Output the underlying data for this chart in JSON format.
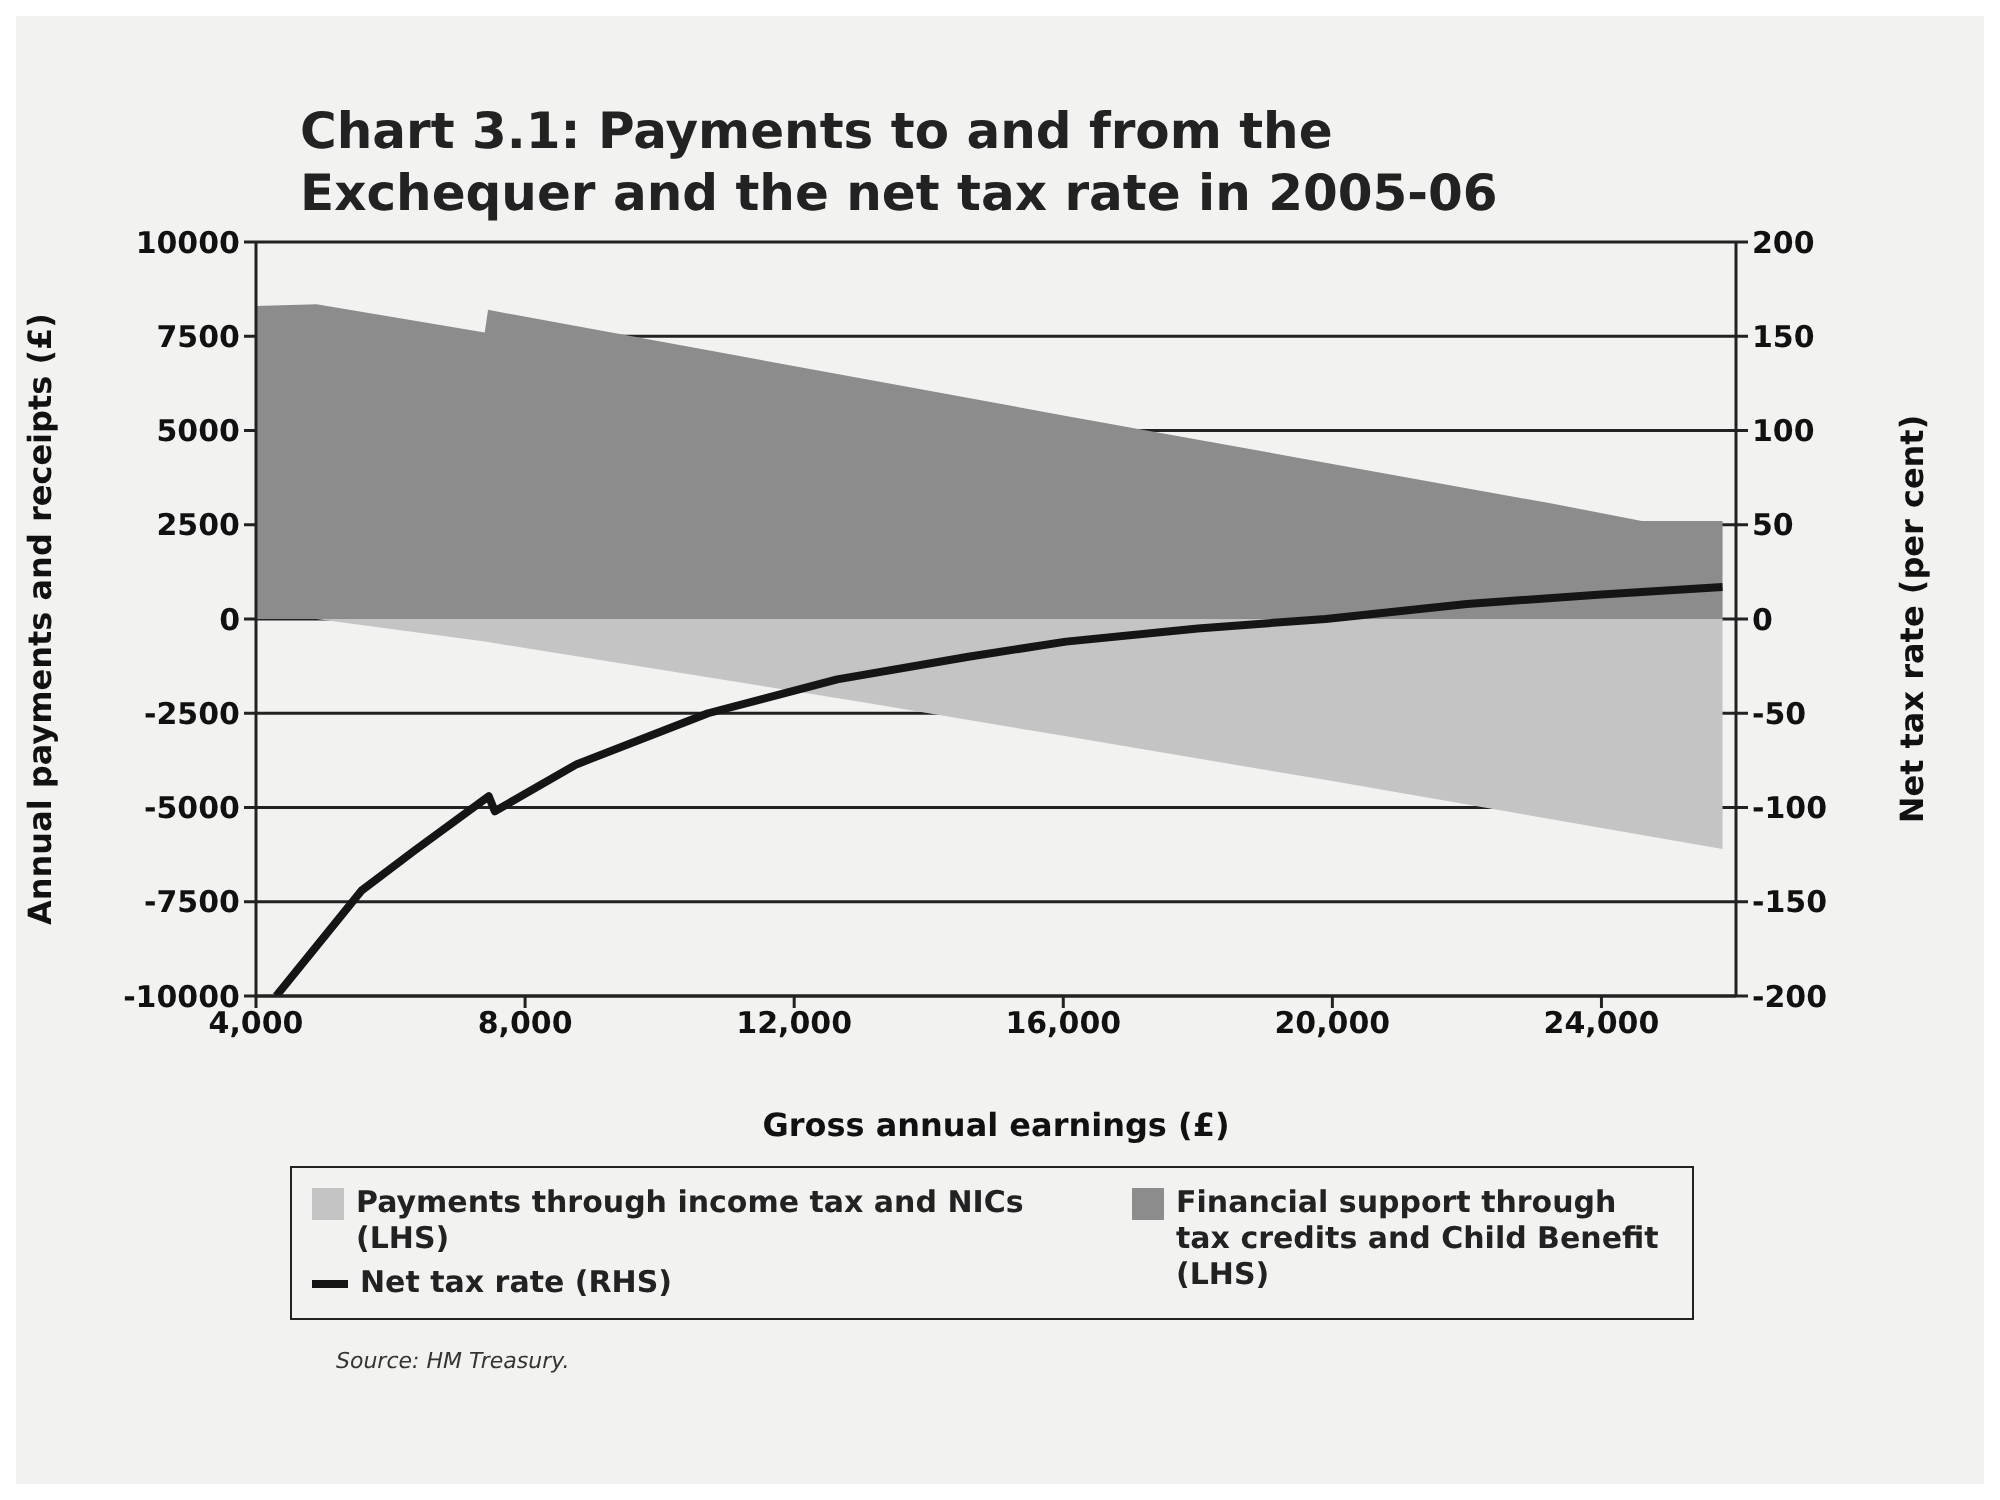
{
  "chart_data": {
    "type": "area",
    "title": "Chart 3.1: Payments to and from the Exchequer and the net tax rate in 2005-06",
    "xlabel": "Gross annual earnings (£)",
    "ylabel": "Annual payments and receipts (£)",
    "y2label": "Net tax rate (per cent)",
    "xlim": [
      4000,
      26000
    ],
    "xticks": [
      {
        "value": 4000,
        "label": "4,000"
      },
      {
        "value": 8000,
        "label": "8,000"
      },
      {
        "value": 12000,
        "label": "12,000"
      },
      {
        "value": 16000,
        "label": "16,000"
      },
      {
        "value": 20000,
        "label": "20,000"
      },
      {
        "value": 24000,
        "label": "24,000"
      }
    ],
    "ylim": [
      -10000,
      10000
    ],
    "yticks": [
      -10000,
      -7500,
      -5000,
      -2500,
      0,
      2500,
      5000,
      7500,
      10000
    ],
    "y2lim": [
      -200,
      200
    ],
    "y2ticks": [
      -200,
      -150,
      -100,
      -50,
      0,
      50,
      100,
      150,
      200
    ],
    "grid": "y",
    "legend": "bottom",
    "series": [
      {
        "name": "Payments through income tax and NICs (LHS)",
        "color": "#c4c4c4",
        "x": [
          4000,
          4900,
          7400,
          13000,
          16000,
          20000,
          25800
        ],
        "values": [
          0,
          0,
          -600,
          -2200,
          -3100,
          -4300,
          -6100
        ]
      },
      {
        "name": "Financial support through tax credits and Child Benefit (LHS)",
        "color": "#8c8c8c",
        "x": [
          4000,
          4900,
          7400,
          7450,
          16000,
          23300,
          24600,
          25800
        ],
        "values": [
          8300,
          8350,
          7600,
          8200,
          5400,
          3050,
          2600,
          2600
        ]
      },
      {
        "name": "Net tax rate (RHS)",
        "type": "line",
        "axis": "y2",
        "color": "#151515",
        "x": [
          4300,
          5570,
          6350,
          7460,
          7550,
          8770,
          10720,
          12640,
          14590,
          16040,
          18000,
          19900,
          22000,
          24000,
          25800
        ],
        "values": [
          -200,
          -144,
          -123,
          -94,
          -102,
          -77,
          -50,
          -32,
          -20,
          -12,
          -5,
          0,
          8,
          13,
          17
        ]
      }
    ],
    "annotations": [
      "Source: HM Treasury."
    ]
  }
}
